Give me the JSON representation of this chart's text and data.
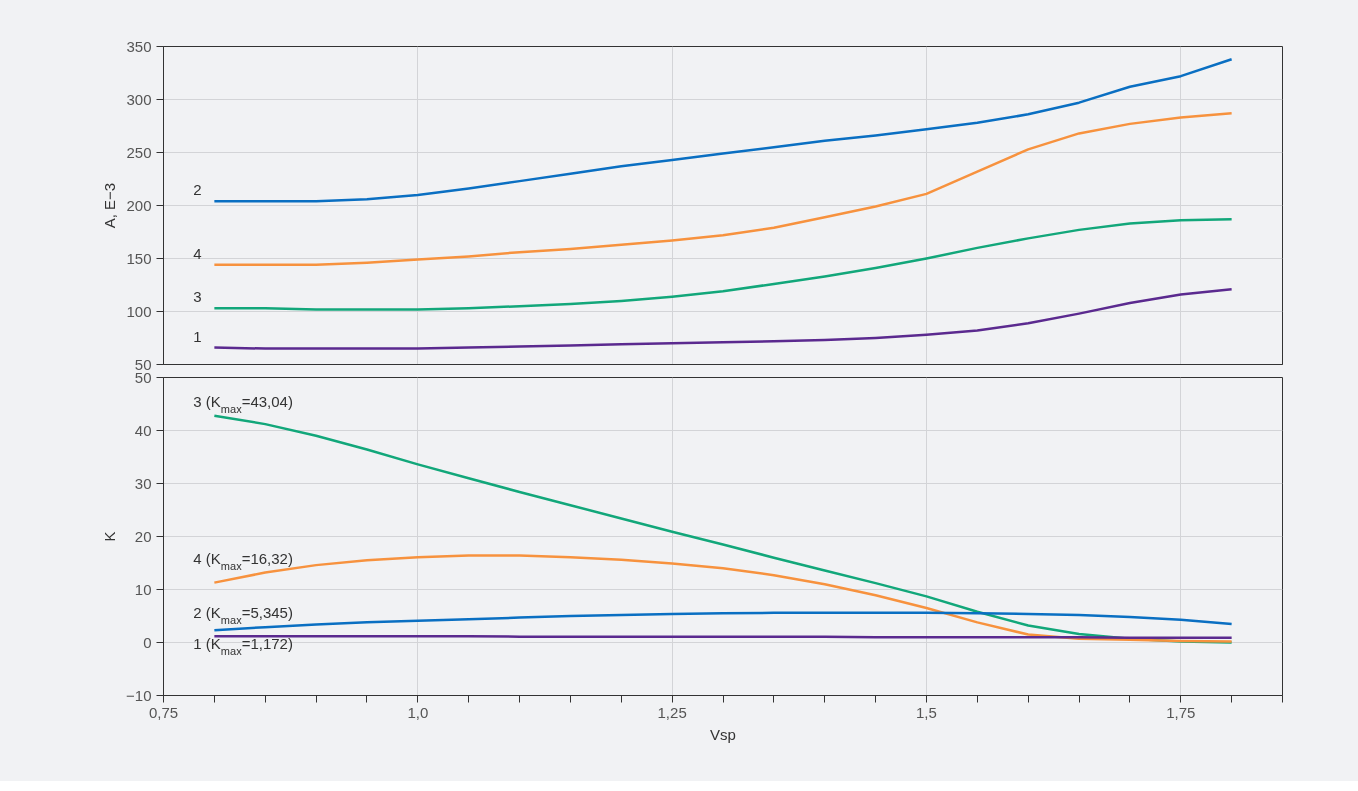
{
  "chart_data": [
    {
      "type": "line",
      "ylabel": "A, E−3",
      "xlim": [
        0.75,
        1.85
      ],
      "ylim": [
        50,
        350
      ],
      "yticks": [
        50,
        100,
        150,
        200,
        250,
        300,
        350
      ],
      "xticks": [
        0.75,
        1.0,
        1.25,
        1.5,
        1.75
      ],
      "tick_labels": "y",
      "grid": true,
      "line_style": "solid",
      "marker": "none",
      "x": [
        0.8,
        0.85,
        0.9,
        0.95,
        1.0,
        1.05,
        1.1,
        1.15,
        1.2,
        1.25,
        1.3,
        1.35,
        1.4,
        1.45,
        1.5,
        1.55,
        1.6,
        1.65,
        1.7,
        1.75,
        1.8
      ],
      "series": [
        {
          "name": "2",
          "color": "#0a6fc2",
          "values": [
            204,
            204,
            204,
            206,
            210,
            216,
            223,
            230,
            237,
            243,
            249,
            255,
            261,
            266,
            272,
            278,
            286,
            297,
            312,
            322,
            338
          ]
        },
        {
          "name": "4",
          "color": "#f7923e",
          "values": [
            144,
            144,
            144,
            146,
            149,
            152,
            156,
            159,
            163,
            167,
            172,
            179,
            189,
            199,
            211,
            232,
            253,
            268,
            277,
            283,
            287
          ]
        },
        {
          "name": "3",
          "color": "#12a77a",
          "values": [
            103,
            103,
            102,
            102,
            102,
            103,
            105,
            107,
            110,
            114,
            119,
            126,
            133,
            141,
            150,
            160,
            169,
            177,
            183,
            186,
            187
          ]
        },
        {
          "name": "1",
          "color": "#5b2a8f",
          "values": [
            66,
            65,
            65,
            65,
            65,
            66,
            67,
            68,
            69,
            70,
            71,
            72,
            73,
            75,
            78,
            82,
            89,
            98,
            108,
            116,
            121
          ]
        }
      ]
    },
    {
      "type": "line",
      "ylabel": "K",
      "xlabel": "Vsp",
      "xlim": [
        0.75,
        1.85
      ],
      "ylim": [
        -10,
        50
      ],
      "yticks": [
        {
          "value": -10,
          "label": "−10"
        },
        0,
        10,
        20,
        30,
        40,
        50
      ],
      "xticks": [
        {
          "value": 0.75,
          "label": "0,75"
        },
        {
          "value": 0.8,
          "label": null
        },
        {
          "value": 0.85,
          "label": null
        },
        {
          "value": 0.9,
          "label": null
        },
        {
          "value": 0.95,
          "label": null
        },
        {
          "value": 1.0,
          "label": "1,0"
        },
        {
          "value": 1.05,
          "label": null
        },
        {
          "value": 1.1,
          "label": null
        },
        {
          "value": 1.15,
          "label": null
        },
        {
          "value": 1.2,
          "label": null
        },
        {
          "value": 1.25,
          "label": "1,25"
        },
        {
          "value": 1.3,
          "label": null
        },
        {
          "value": 1.35,
          "label": null
        },
        {
          "value": 1.4,
          "label": null
        },
        {
          "value": 1.45,
          "label": null
        },
        {
          "value": 1.5,
          "label": "1,5"
        },
        {
          "value": 1.55,
          "label": null
        },
        {
          "value": 1.6,
          "label": null
        },
        {
          "value": 1.65,
          "label": null
        },
        {
          "value": 1.7,
          "label": null
        },
        {
          "value": 1.75,
          "label": "1,75"
        },
        {
          "value": 1.8,
          "label": null
        },
        {
          "value": 1.85,
          "label": null
        }
      ],
      "grid": true,
      "line_style": "solid",
      "marker": "none",
      "x": [
        0.8,
        0.85,
        0.9,
        0.95,
        1.0,
        1.05,
        1.1,
        1.15,
        1.2,
        1.25,
        1.3,
        1.35,
        1.4,
        1.45,
        1.5,
        1.55,
        1.6,
        1.65,
        1.7,
        1.75,
        1.8
      ],
      "series": [
        {
          "name": "3 (K$_{max}$=43,04)",
          "color": "#12a77a",
          "values": [
            42.8,
            41.2,
            39.0,
            36.4,
            33.6,
            31.0,
            28.4,
            25.9,
            23.4,
            20.9,
            18.5,
            16.0,
            13.6,
            11.2,
            8.7,
            5.8,
            3.2,
            1.6,
            0.7,
            0.2,
            0.0
          ]
        },
        {
          "name": "4 (K$_{max}$=16,32)",
          "color": "#f7923e",
          "values": [
            11.3,
            13.2,
            14.6,
            15.5,
            16.1,
            16.4,
            16.4,
            16.1,
            15.6,
            14.9,
            14.0,
            12.7,
            11.0,
            8.9,
            6.5,
            3.8,
            1.5,
            0.7,
            0.5,
            0.3,
            0.2
          ]
        },
        {
          "name": "2 (K$_{max}$=5,345)",
          "color": "#0a6fc2",
          "values": [
            2.3,
            2.9,
            3.4,
            3.8,
            4.1,
            4.4,
            4.7,
            5.0,
            5.2,
            5.4,
            5.5,
            5.6,
            5.6,
            5.6,
            5.6,
            5.5,
            5.4,
            5.2,
            4.8,
            4.3,
            3.5
          ]
        },
        {
          "name": "1 (K$_{max}$=1,172)",
          "color": "#5b2a8f",
          "values": [
            1.2,
            1.2,
            1.2,
            1.2,
            1.2,
            1.2,
            1.1,
            1.1,
            1.1,
            1.1,
            1.1,
            1.1,
            1.1,
            1.0,
            1.0,
            1.0,
            1.0,
            1.0,
            0.9,
            0.9,
            0.9
          ]
        }
      ]
    }
  ]
}
